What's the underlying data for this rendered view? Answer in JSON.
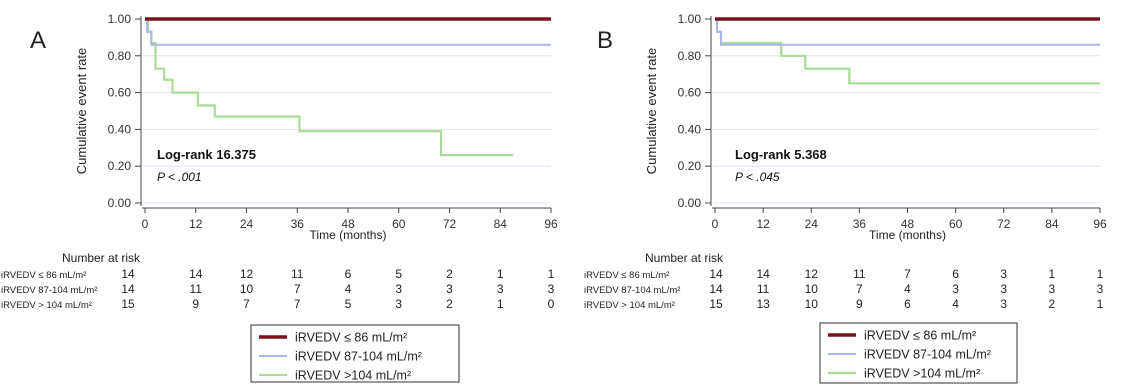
{
  "colors": {
    "series1": "#7a1020",
    "series2": "#aab4e6",
    "series3": "#a8dc98",
    "grid": "#dde4f0",
    "axis": "#444444"
  },
  "legend_labels": [
    "iRVEDV ≤ 86 mL/m²",
    "iRVEDV 87-104 mL/m²",
    "iRVEDV >104 mL/m²"
  ],
  "chart_data": [
    {
      "type": "line",
      "panel_label": "A",
      "xlabel": "Time (months)",
      "ylabel": "Cumulative event rate",
      "xlim": [
        0,
        96
      ],
      "ylim": [
        0,
        1
      ],
      "x_ticks": [
        "0",
        "12",
        "24",
        "36",
        "48",
        "60",
        "72",
        "84",
        "96"
      ],
      "y_ticks": [
        "0.00",
        "0.20",
        "0.40",
        "0.60",
        "0.80",
        "1.00"
      ],
      "grid": true,
      "legend_position": "bottom",
      "annotation": {
        "test": "Log-rank 16.375",
        "p": "P < .001"
      },
      "series": [
        {
          "name": "iRVEDV ≤ 86 mL/m²",
          "x": [
            0,
            100
          ],
          "y": [
            1.0,
            1.0
          ]
        },
        {
          "name": "iRVEDV 87-104 mL/m²",
          "x": [
            0,
            0.5,
            1.5,
            99
          ],
          "y": [
            1.0,
            0.93,
            0.86,
            0.86
          ]
        },
        {
          "name": "iRVEDV >104 mL/m²",
          "x": [
            0,
            0.7,
            1.5,
            2.5,
            4.5,
            6.5,
            12.5,
            14.5,
            16.5,
            36.5,
            70,
            87
          ],
          "y": [
            1.0,
            0.93,
            0.87,
            0.73,
            0.67,
            0.6,
            0.53,
            0.53,
            0.47,
            0.39,
            0.26,
            0.26
          ]
        }
      ],
      "risk_table": {
        "title": "Number at risk",
        "rows": [
          {
            "label": "iRVEDV ≤ 86 mL/m²",
            "values": [
              "14",
              "14",
              "12",
              "11",
              "6",
              "5",
              "2",
              "1",
              "1"
            ]
          },
          {
            "label": "iRVEDV 87-104 mL/m²",
            "values": [
              "14",
              "11",
              "10",
              "7",
              "4",
              "3",
              "3",
              "3",
              "3"
            ]
          },
          {
            "label": "iRVEDV > 104 mL/m²",
            "values": [
              "15",
              "9",
              "7",
              "7",
              "5",
              "3",
              "2",
              "1",
              "0"
            ]
          }
        ]
      }
    },
    {
      "type": "line",
      "panel_label": "B",
      "xlabel": "Time (months)",
      "ylabel": "Cumulative event rate",
      "xlim": [
        0,
        96
      ],
      "ylim": [
        0,
        1
      ],
      "x_ticks": [
        "0",
        "12",
        "24",
        "36",
        "48",
        "60",
        "72",
        "84",
        "96"
      ],
      "y_ticks": [
        "0.00",
        "0.20",
        "0.40",
        "0.60",
        "0.80",
        "1.00"
      ],
      "grid": true,
      "legend_position": "bottom",
      "annotation": {
        "test": "Log-rank 5.368",
        "p": "P < .045"
      },
      "series": [
        {
          "name": "iRVEDV ≤ 86 mL/m²",
          "x": [
            0,
            100
          ],
          "y": [
            1.0,
            1.0
          ]
        },
        {
          "name": "iRVEDV 87-104 mL/m²",
          "x": [
            0,
            0.5,
            1.5,
            99
          ],
          "y": [
            1.0,
            0.93,
            0.86,
            0.86
          ]
        },
        {
          "name": "iRVEDV >104 mL/m²",
          "x": [
            0,
            0.5,
            1.5,
            16.5,
            22.5,
            33.5,
            100
          ],
          "y": [
            1.0,
            0.93,
            0.87,
            0.8,
            0.73,
            0.65,
            0.65
          ]
        }
      ],
      "risk_table": {
        "title": "Number at risk",
        "rows": [
          {
            "label": "iRVEDV ≤ 86 mL/m²",
            "values": [
              "14",
              "14",
              "12",
              "11",
              "7",
              "6",
              "3",
              "1",
              "1"
            ]
          },
          {
            "label": "iRVEDV 87-104 mL/m²",
            "values": [
              "14",
              "11",
              "10",
              "7",
              "4",
              "3",
              "3",
              "3",
              "3"
            ]
          },
          {
            "label": "iRVEDV > 104 mL/m²",
            "values": [
              "15",
              "13",
              "10",
              "9",
              "6",
              "4",
              "3",
              "2",
              "1"
            ]
          }
        ]
      }
    }
  ]
}
